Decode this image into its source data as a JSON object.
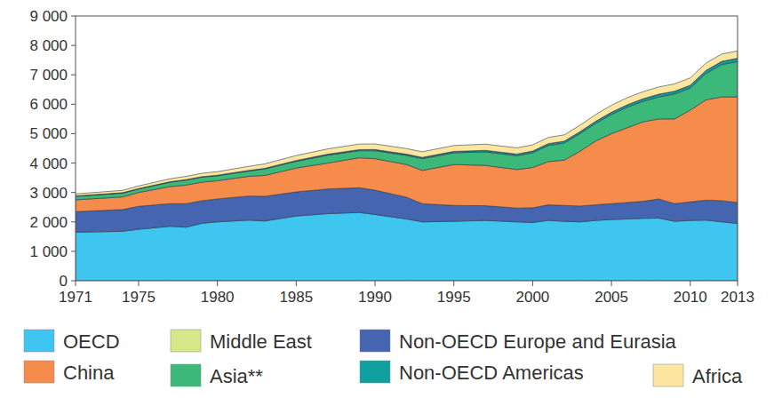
{
  "chart_data": {
    "type": "area",
    "stacked": true,
    "x": [
      1971,
      1974,
      1975,
      1977,
      1978,
      1979,
      1980,
      1982,
      1983,
      1985,
      1987,
      1989,
      1990,
      1992,
      1993,
      1995,
      1997,
      1999,
      2000,
      2001,
      2002,
      2003,
      2004,
      2005,
      2006,
      2007,
      2008,
      2009,
      2010,
      2011,
      2012,
      2013
    ],
    "series": [
      {
        "name": "OECD",
        "color": "#3fc6f0",
        "values": [
          1650,
          1680,
          1750,
          1850,
          1820,
          1950,
          2000,
          2060,
          2030,
          2200,
          2280,
          2320,
          2250,
          2100,
          2000,
          2020,
          2050,
          2000,
          1980,
          2050,
          2020,
          2000,
          2050,
          2080,
          2100,
          2120,
          2130,
          2020,
          2050,
          2060,
          2000,
          1950
        ]
      },
      {
        "name": "Non-OECD Europe and Eurasia",
        "color": "#4565b0",
        "values": [
          700,
          740,
          780,
          770,
          800,
          770,
          780,
          820,
          840,
          820,
          840,
          840,
          830,
          740,
          620,
          540,
          500,
          470,
          500,
          530,
          540,
          540,
          530,
          540,
          560,
          580,
          650,
          600,
          630,
          680,
          720,
          710
        ]
      },
      {
        "name": "China",
        "color": "#f58c4c",
        "values": [
          400,
          430,
          470,
          580,
          630,
          630,
          620,
          670,
          710,
          810,
          880,
          1020,
          1070,
          1110,
          1130,
          1390,
          1370,
          1310,
          1370,
          1470,
          1540,
          1860,
          2170,
          2380,
          2540,
          2700,
          2720,
          2880,
          3120,
          3410,
          3530,
          3590
        ]
      },
      {
        "name": "Asia**",
        "color": "#3cb878",
        "values": [
          120,
          130,
          120,
          150,
          170,
          170,
          170,
          180,
          220,
          230,
          270,
          240,
          270,
          310,
          400,
          400,
          460,
          470,
          500,
          550,
          580,
          600,
          600,
          650,
          700,
          700,
          750,
          850,
          750,
          900,
          1100,
          1200
        ]
      },
      {
        "name": "Non-OECD Americas",
        "color": "#10a0a0",
        "values": [
          10,
          12,
          12,
          14,
          15,
          15,
          16,
          18,
          20,
          25,
          30,
          35,
          38,
          40,
          42,
          45,
          50,
          55,
          58,
          60,
          62,
          65,
          70,
          75,
          80,
          85,
          90,
          90,
          95,
          100,
          105,
          110
        ]
      },
      {
        "name": "Middle East",
        "color": "#d5e88a",
        "values": [
          2,
          2,
          2,
          2,
          2,
          2,
          2,
          2,
          2,
          2,
          2,
          2,
          2,
          2,
          2,
          2,
          2,
          2,
          2,
          2,
          2,
          2,
          2,
          2,
          2,
          2,
          2,
          2,
          2,
          2,
          2,
          2
        ]
      },
      {
        "name": "Africa",
        "color": "#fde6a0",
        "values": [
          70,
          80,
          90,
          100,
          110,
          115,
          120,
          140,
          150,
          170,
          180,
          190,
          190,
          190,
          190,
          200,
          210,
          210,
          210,
          210,
          215,
          220,
          230,
          240,
          240,
          240,
          245,
          250,
          250,
          250,
          250,
          250
        ]
      }
    ],
    "xlim": [
      1971,
      2013
    ],
    "xticks": [
      1971,
      1975,
      1980,
      1985,
      1990,
      1995,
      2000,
      2005,
      2010,
      2013
    ],
    "ylim": [
      0,
      9000
    ],
    "yticks": [
      0,
      {
        "value": 1000,
        "label": "1 000"
      },
      {
        "value": 2000,
        "label": "2 000"
      },
      {
        "value": 3000,
        "label": "3 000"
      },
      {
        "value": 4000,
        "label": "4 000"
      },
      {
        "value": 5000,
        "label": "5 000"
      },
      {
        "value": 6000,
        "label": "6 000"
      },
      {
        "value": 7000,
        "label": "7 000"
      },
      {
        "value": 8000,
        "label": "8 000"
      },
      {
        "value": 9000,
        "label": "9 000"
      }
    ],
    "grid": false
  }
}
